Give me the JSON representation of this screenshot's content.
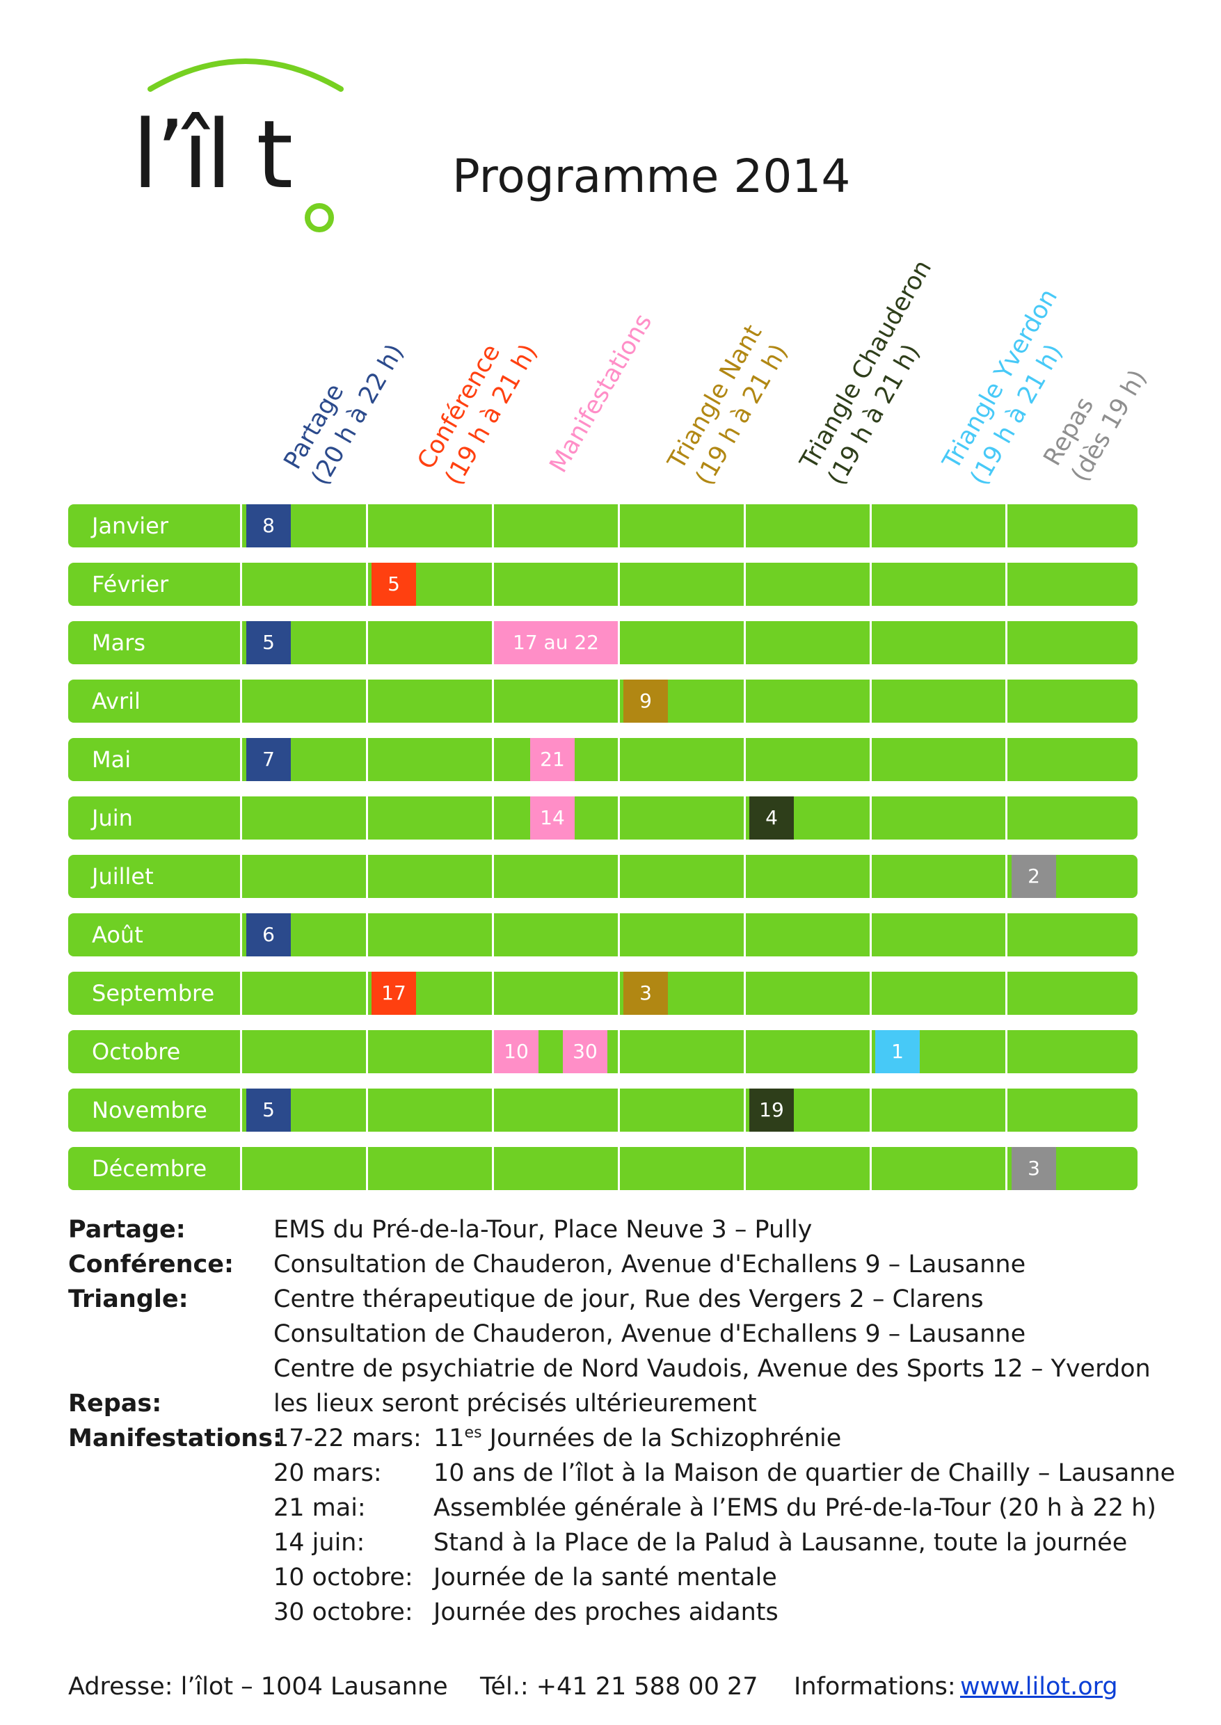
{
  "logo": {
    "text": "l’îl t"
  },
  "title": "Programme 2014",
  "columns": [
    {
      "key": "partage",
      "line1": "Partage",
      "line2": "(20 h à 22 h)",
      "color": "#2b4a8c"
    },
    {
      "key": "conference",
      "line1": "Conférence",
      "line2": "(19 h à 21 h)",
      "color": "#ff4010"
    },
    {
      "key": "manifestations",
      "line1": "Manifestations",
      "line2": "",
      "color": "#ff8ec7"
    },
    {
      "key": "nant",
      "line1": "Triangle Nant",
      "line2": "(19 h à 21 h)",
      "color": "#b18713"
    },
    {
      "key": "chauderon",
      "line1": "Triangle Chauderon",
      "line2": "(19 h à 21 h)",
      "color": "#2e3e1a"
    },
    {
      "key": "yverdon",
      "line1": "Triangle Yverdon",
      "line2": "(19 h à 21 h)",
      "color": "#47c9f7"
    },
    {
      "key": "repas",
      "line1": "Repas",
      "line2": "(dès 19 h)",
      "color": "#8f8f8f"
    }
  ],
  "months": [
    {
      "name": "Janvier",
      "events": [
        {
          "col": 0,
          "label": "8"
        }
      ]
    },
    {
      "name": "Février",
      "events": [
        {
          "col": 1,
          "label": "5"
        }
      ]
    },
    {
      "name": "Mars",
      "events": [
        {
          "col": 0,
          "label": "5"
        },
        {
          "col": 2,
          "label": "17 au 22",
          "span": "full"
        }
      ]
    },
    {
      "name": "Avril",
      "events": [
        {
          "col": 3,
          "label": "9"
        }
      ]
    },
    {
      "name": "Mai",
      "events": [
        {
          "col": 0,
          "label": "7"
        },
        {
          "col": 2,
          "label": "21"
        }
      ]
    },
    {
      "name": "Juin",
      "events": [
        {
          "col": 2,
          "label": "14"
        },
        {
          "col": 4,
          "label": "4"
        }
      ]
    },
    {
      "name": "Juillet",
      "events": [
        {
          "col": 6,
          "label": "2"
        }
      ]
    },
    {
      "name": "Août",
      "events": [
        {
          "col": 0,
          "label": "6"
        }
      ]
    },
    {
      "name": "Septembre",
      "events": [
        {
          "col": 1,
          "label": "17"
        },
        {
          "col": 3,
          "label": "3"
        }
      ]
    },
    {
      "name": "Octobre",
      "events": [
        {
          "col": 2,
          "label": "10",
          "slot": "a"
        },
        {
          "col": 2,
          "label": "30",
          "slot": "b"
        },
        {
          "col": 5,
          "label": "1"
        }
      ]
    },
    {
      "name": "Novembre",
      "events": [
        {
          "col": 0,
          "label": "5"
        },
        {
          "col": 4,
          "label": "19"
        }
      ]
    },
    {
      "name": "Décembre",
      "events": [
        {
          "col": 6,
          "label": "3"
        }
      ]
    }
  ],
  "info": {
    "partage_label": "Partage:",
    "partage_text": "EMS du Pré-de-la-Tour, Place Neuve 3 – Pully",
    "conference_label": "Conférence:",
    "conference_text": "Consultation de Chauderon, Avenue d'Echallens 9 – Lausanne",
    "triangle_label": "Triangle:",
    "triangle_lines": [
      "Centre thérapeutique de jour, Rue des Vergers 2 – Clarens",
      "Consultation de Chauderon, Avenue d'Echallens 9 – Lausanne",
      "Centre de psychiatrie de Nord Vaudois, Avenue des Sports 12 – Yverdon"
    ],
    "repas_label": "Repas:",
    "repas_text": "les lieux seront précisés ultérieurement",
    "manif_label": "Manifestations:",
    "manif_first": {
      "date": "17-22 mars:",
      "num": "11",
      "sup": "es",
      "rest": " Journées de la Schizophrénie"
    },
    "manif_items": [
      {
        "date": "20 mars:",
        "desc": "10 ans de l’îlot à la Maison de quartier de Chailly – Lausanne"
      },
      {
        "date": "21 mai:",
        "desc": "Assemblée générale à l’EMS du Pré-de-la-Tour (20 h à 22 h)"
      },
      {
        "date": "14 juin:",
        "desc": "Stand à la Place de la Palud à Lausanne, toute la journée"
      },
      {
        "date": "10 octobre:",
        "desc": "Journée de la santé mentale"
      },
      {
        "date": "30 octobre:",
        "desc": "Journée des proches aidants"
      }
    ]
  },
  "footer": {
    "address": "Adresse: l’îlot – 1004 Lausanne",
    "phone": "Tél.: +41 21 588 00 27",
    "info_label": "Informations:",
    "link": "www.lilot.org",
    "link_color": "#0b3fd6"
  },
  "colors": {
    "row_green": "#6fd024",
    "logo_green": "#76d021"
  }
}
